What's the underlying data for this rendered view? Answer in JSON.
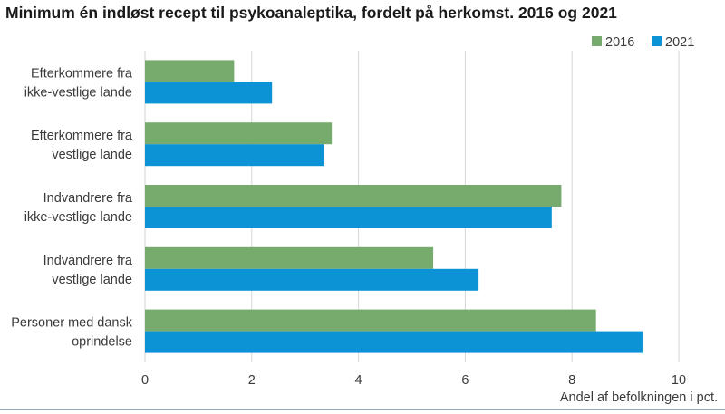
{
  "chart_data": {
    "type": "bar",
    "orientation": "horizontal",
    "title": "Minimum én indløst recept til psykoanaleptika, fordelt på herkomst. 2016 og 2021",
    "xlabel": "Andel af befolkningen i pct.",
    "xlim": [
      0,
      10
    ],
    "xticks": [
      0,
      2,
      4,
      6,
      8,
      10
    ],
    "grid": true,
    "legend_position": "top-right",
    "categories": [
      [
        "Efterkommere fra",
        "ikke-vestlige lande"
      ],
      [
        "Efterkommere fra",
        "vestlige lande"
      ],
      [
        "Indvandrere fra",
        "ikke-vestlige lande"
      ],
      [
        "Indvandrere fra",
        "vestlige lande"
      ],
      [
        "Personer med dansk",
        "oprindelse"
      ]
    ],
    "series": [
      {
        "name": "2016",
        "color": "#77ab6e",
        "values": [
          1.67,
          3.5,
          7.8,
          5.4,
          8.45
        ]
      },
      {
        "name": "2021",
        "color": "#0b93d6",
        "values": [
          2.38,
          3.35,
          7.62,
          6.25,
          9.32
        ]
      }
    ]
  }
}
